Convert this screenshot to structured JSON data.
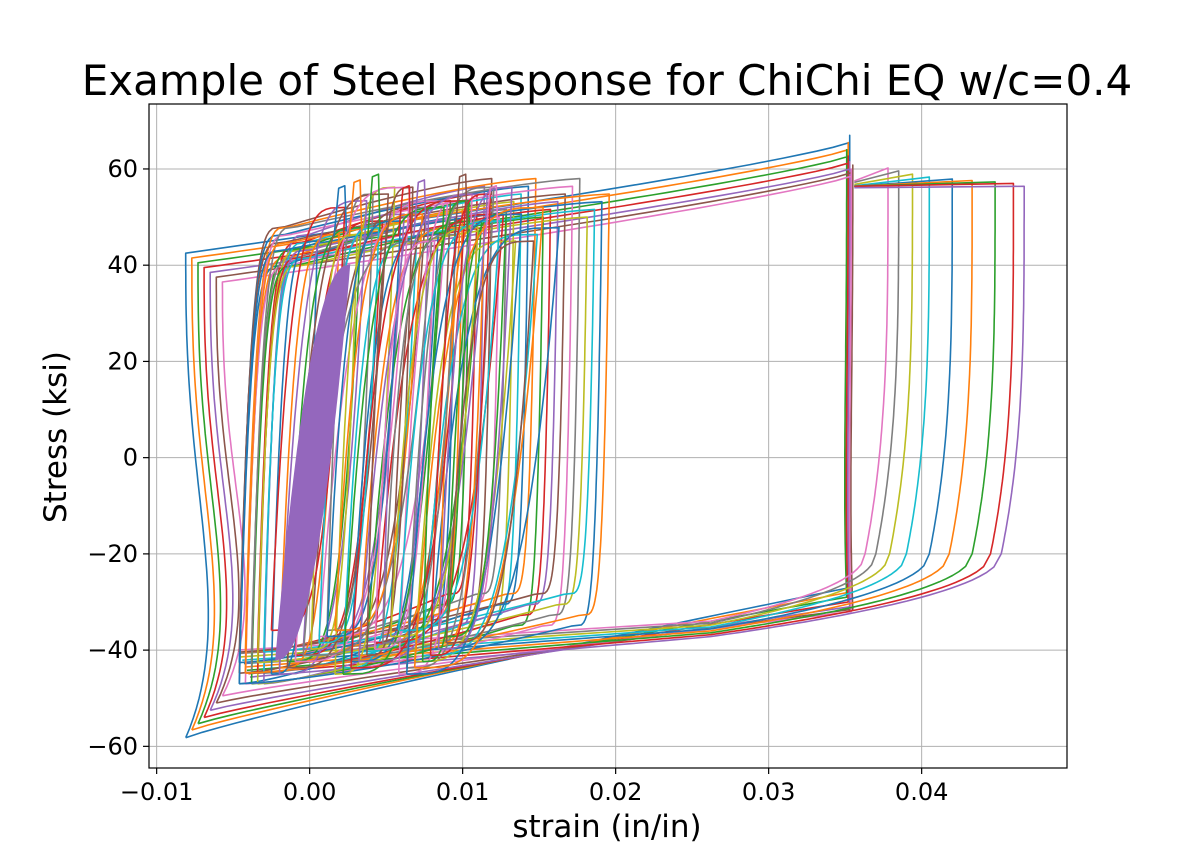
{
  "chart_data": {
    "type": "line",
    "title": "Example of Steel Response for ChiChi EQ w/c=0.4",
    "xlabel": "strain (in/in)",
    "ylabel": "Stress (ksi)",
    "xlim": [
      -0.0105,
      0.0495
    ],
    "ylim": [
      -64.5,
      73.5
    ],
    "xticks": [
      -0.01,
      0.0,
      0.01,
      0.02,
      0.03,
      0.04
    ],
    "xtick_labels": [
      "−0.01",
      "0.00",
      "0.01",
      "0.02",
      "0.03",
      "0.04"
    ],
    "yticks": [
      -60,
      -40,
      -20,
      0,
      20,
      40,
      60
    ],
    "ytick_labels": [
      "−60",
      "−40",
      "−20",
      "0",
      "20",
      "40",
      "60"
    ],
    "grid": true,
    "legend": "none",
    "colors": [
      "#1f77b4",
      "#ff7f0e",
      "#2ca02c",
      "#d62728",
      "#9467bd",
      "#8c564b",
      "#e377c2",
      "#7f7f7f",
      "#bcbd22",
      "#17becf"
    ],
    "series": [
      {
        "color": "#1f77b4",
        "values": [
          [
            -0.0081,
            -58.2
          ],
          [
            0.0353,
            -27.0
          ],
          [
            0.0353,
            67.0
          ],
          [
            -0.0081,
            42.0
          ]
        ]
      },
      {
        "color": "#ff7f0e",
        "values": [
          [
            -0.0077,
            -56.5
          ],
          [
            0.0351,
            -28.0
          ],
          [
            0.0351,
            65.5
          ],
          [
            -0.0077,
            41.0
          ]
        ]
      },
      {
        "color": "#2ca02c",
        "values": [
          [
            -0.0073,
            -55.2
          ],
          [
            0.035,
            -29.0
          ],
          [
            0.035,
            64.0
          ],
          [
            -0.0073,
            40.0
          ]
        ]
      },
      {
        "color": "#d62728",
        "values": [
          [
            -0.0069,
            -54.0
          ],
          [
            0.0352,
            -30.0
          ],
          [
            0.0352,
            62.5
          ],
          [
            -0.0069,
            39.0
          ]
        ]
      },
      {
        "color": "#8c564b",
        "values": [
          [
            -0.0064,
            -52.5
          ],
          [
            0.0355,
            -31.0
          ],
          [
            0.0355,
            61.0
          ],
          [
            -0.0064,
            38.0
          ]
        ]
      },
      {
        "color": "#e377c2",
        "values": [
          [
            0.026,
            -40.0
          ],
          [
            0.0378,
            60.1
          ],
          [
            0.0378,
            60.1
          ]
        ]
      },
      {
        "color": "#7f7f7f",
        "values": [
          [
            0.0262,
            -40.0
          ],
          [
            0.0385,
            59.5
          ],
          [
            0.0385,
            59.5
          ]
        ]
      },
      {
        "color": "#bcbd22",
        "values": [
          [
            0.0264,
            -40.0
          ],
          [
            0.0394,
            58.8
          ],
          [
            0.0394,
            58.8
          ]
        ]
      },
      {
        "color": "#17becf",
        "values": [
          [
            0.0266,
            -40.0
          ],
          [
            0.0405,
            58.2
          ],
          [
            0.0405,
            58.2
          ]
        ]
      },
      {
        "color": "#1f77b4",
        "values": [
          [
            0.0268,
            -40.0
          ],
          [
            0.042,
            57.8
          ],
          [
            0.042,
            57.8
          ]
        ]
      },
      {
        "color": "#ff7f0e",
        "values": [
          [
            0.027,
            -40.0
          ],
          [
            0.0433,
            57.5
          ],
          [
            0.0433,
            57.5
          ]
        ]
      },
      {
        "color": "#2ca02c",
        "values": [
          [
            0.0272,
            -40.0
          ],
          [
            0.0448,
            57.2
          ],
          [
            0.0448,
            57.2
          ]
        ]
      },
      {
        "color": "#d62728",
        "values": [
          [
            0.0274,
            -40.0
          ],
          [
            0.046,
            57.0
          ],
          [
            0.046,
            57.0
          ]
        ]
      },
      {
        "color": "#9467bd",
        "values": [
          [
            0.0276,
            -40.0
          ],
          [
            0.0467,
            56.3
          ],
          [
            0.0467,
            56.3
          ]
        ]
      },
      {
        "color": "#1f77b4",
        "values": [
          [
            -0.0045,
            -47.0
          ],
          [
            0.02,
            -31.0
          ],
          [
            0.018,
            61.0
          ],
          [
            -0.0045,
            40.0
          ]
        ]
      },
      {
        "color": "#9467bd",
        "values": [
          [
            -0.004,
            -46.0
          ],
          [
            0.016,
            -32.0
          ],
          [
            0.016,
            45.5
          ],
          [
            -0.004,
            35.0
          ]
        ]
      }
    ]
  }
}
